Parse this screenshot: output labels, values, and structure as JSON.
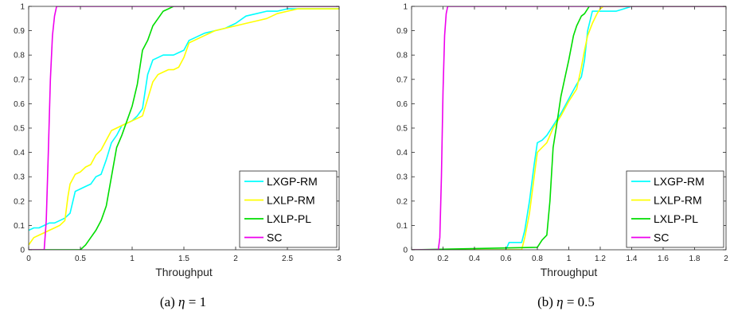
{
  "chart_data": [
    {
      "type": "line",
      "caption": "(a) η = 1",
      "caption_label": "(a)",
      "caption_var": "η",
      "caption_rhs": "= 1",
      "xlabel": "Throughput",
      "ylabel": "",
      "xlim": [
        0,
        3
      ],
      "ylim": [
        0,
        1
      ],
      "xticks": [
        "0",
        "0.5",
        "1",
        "1.5",
        "2",
        "2.5",
        "3"
      ],
      "yticks": [
        "0",
        "0.1",
        "0.2",
        "0.3",
        "0.4",
        "0.5",
        "0.6",
        "0.7",
        "0.8",
        "0.9",
        "1"
      ],
      "grid": false,
      "legend_position": "bottom-right",
      "series": [
        {
          "name": "LXGP-RM",
          "color": "#00FFFF",
          "x": [
            0,
            0.05,
            0.1,
            0.15,
            0.2,
            0.25,
            0.3,
            0.35,
            0.4,
            0.45,
            0.5,
            0.55,
            0.6,
            0.65,
            0.7,
            0.75,
            0.8,
            0.85,
            0.9,
            0.95,
            1.0,
            1.05,
            1.1,
            1.15,
            1.2,
            1.25,
            1.3,
            1.35,
            1.4,
            1.45,
            1.5,
            1.55,
            1.6,
            1.7,
            1.8,
            1.9,
            2.0,
            2.1,
            2.2,
            2.3,
            2.4,
            2.5,
            2.6,
            3.0
          ],
          "y": [
            0.08,
            0.09,
            0.09,
            0.1,
            0.11,
            0.11,
            0.12,
            0.13,
            0.15,
            0.24,
            0.25,
            0.26,
            0.27,
            0.3,
            0.31,
            0.37,
            0.44,
            0.47,
            0.51,
            0.52,
            0.53,
            0.55,
            0.58,
            0.72,
            0.78,
            0.79,
            0.8,
            0.8,
            0.8,
            0.81,
            0.82,
            0.86,
            0.87,
            0.89,
            0.9,
            0.91,
            0.93,
            0.96,
            0.97,
            0.98,
            0.98,
            0.99,
            0.99,
            0.99
          ]
        },
        {
          "name": "LXLP-RM",
          "color": "#FFFF00",
          "x": [
            0,
            0.05,
            0.1,
            0.15,
            0.2,
            0.25,
            0.3,
            0.35,
            0.38,
            0.4,
            0.45,
            0.5,
            0.55,
            0.6,
            0.65,
            0.7,
            0.75,
            0.8,
            0.85,
            0.9,
            0.95,
            1.0,
            1.05,
            1.1,
            1.15,
            1.2,
            1.25,
            1.3,
            1.35,
            1.4,
            1.45,
            1.5,
            1.55,
            1.6,
            1.7,
            1.8,
            1.9,
            2.0,
            2.1,
            2.2,
            2.3,
            2.4,
            2.5,
            2.6,
            3.0
          ],
          "y": [
            0.02,
            0.05,
            0.06,
            0.07,
            0.08,
            0.09,
            0.1,
            0.12,
            0.22,
            0.27,
            0.31,
            0.32,
            0.34,
            0.35,
            0.39,
            0.41,
            0.45,
            0.49,
            0.5,
            0.51,
            0.52,
            0.53,
            0.54,
            0.55,
            0.62,
            0.69,
            0.72,
            0.73,
            0.74,
            0.74,
            0.75,
            0.79,
            0.85,
            0.86,
            0.88,
            0.9,
            0.91,
            0.92,
            0.93,
            0.94,
            0.95,
            0.97,
            0.98,
            0.99,
            0.99
          ]
        },
        {
          "name": "LXLP-PL",
          "color": "#00DD00",
          "x": [
            0,
            0.5,
            0.55,
            0.6,
            0.65,
            0.7,
            0.75,
            0.8,
            0.85,
            0.9,
            0.95,
            1.0,
            1.05,
            1.1,
            1.15,
            1.2,
            1.25,
            1.3,
            1.35,
            1.4,
            1.5,
            3.0
          ],
          "y": [
            0,
            0,
            0.02,
            0.05,
            0.08,
            0.12,
            0.18,
            0.3,
            0.42,
            0.47,
            0.53,
            0.59,
            0.68,
            0.82,
            0.86,
            0.92,
            0.95,
            0.98,
            0.99,
            1.0,
            1.0,
            1.0
          ]
        },
        {
          "name": "SC",
          "color": "#EE00EE",
          "x": [
            0,
            0.15,
            0.17,
            0.19,
            0.21,
            0.23,
            0.25,
            0.27,
            0.3,
            3.0
          ],
          "y": [
            0,
            0,
            0.12,
            0.4,
            0.7,
            0.88,
            0.96,
            1.0,
            1.0,
            1.0
          ]
        }
      ]
    },
    {
      "type": "line",
      "caption": "(b) η = 0.5",
      "caption_label": "(b)",
      "caption_var": "η",
      "caption_rhs": "= 0.5",
      "xlabel": "Throughput",
      "ylabel": "",
      "xlim": [
        0,
        2
      ],
      "ylim": [
        0,
        1
      ],
      "xticks": [
        "0",
        "0.2",
        "0.4",
        "0.6",
        "0.8",
        "1",
        "1.2",
        "1.4",
        "1.6",
        "1.8",
        "2"
      ],
      "yticks": [
        "0",
        "0.1",
        "0.2",
        "0.3",
        "0.4",
        "0.5",
        "0.6",
        "0.7",
        "0.8",
        "0.9",
        "1"
      ],
      "grid": false,
      "legend_position": "bottom-right",
      "series": [
        {
          "name": "LXGP-RM",
          "color": "#00FFFF",
          "x": [
            0,
            0.6,
            0.62,
            0.7,
            0.72,
            0.75,
            0.78,
            0.8,
            0.83,
            0.86,
            0.9,
            0.95,
            1.0,
            1.05,
            1.08,
            1.1,
            1.12,
            1.15,
            1.2,
            1.25,
            1.3,
            1.35,
            1.4,
            2.0
          ],
          "y": [
            0,
            0,
            0.03,
            0.03,
            0.08,
            0.2,
            0.35,
            0.44,
            0.45,
            0.47,
            0.51,
            0.56,
            0.62,
            0.68,
            0.71,
            0.78,
            0.9,
            0.98,
            0.98,
            0.98,
            0.98,
            0.99,
            1.0,
            1.0
          ]
        },
        {
          "name": "LXLP-RM",
          "color": "#FFFF00",
          "x": [
            0,
            0.7,
            0.72,
            0.75,
            0.78,
            0.8,
            0.83,
            0.86,
            0.9,
            0.95,
            1.0,
            1.05,
            1.08,
            1.1,
            1.12,
            1.15,
            1.18,
            1.2,
            1.22,
            2.0
          ],
          "y": [
            0,
            0,
            0.05,
            0.15,
            0.3,
            0.4,
            0.42,
            0.44,
            0.5,
            0.55,
            0.61,
            0.66,
            0.75,
            0.82,
            0.88,
            0.93,
            0.97,
            0.99,
            1.0,
            1.0
          ]
        },
        {
          "name": "LXLP-PL",
          "color": "#00DD00",
          "x": [
            0,
            0.8,
            0.83,
            0.86,
            0.88,
            0.9,
            0.92,
            0.95,
            0.98,
            1.0,
            1.03,
            1.05,
            1.08,
            1.1,
            1.13,
            1.15,
            2.0
          ],
          "y": [
            0,
            0.01,
            0.04,
            0.06,
            0.2,
            0.42,
            0.5,
            0.63,
            0.72,
            0.78,
            0.88,
            0.92,
            0.96,
            0.97,
            1.0,
            1.0,
            1.0
          ]
        },
        {
          "name": "SC",
          "color": "#EE00EE",
          "x": [
            0,
            0.17,
            0.18,
            0.19,
            0.2,
            0.21,
            0.22,
            0.23,
            0.25,
            2.0
          ],
          "y": [
            0,
            0,
            0.05,
            0.3,
            0.65,
            0.88,
            0.97,
            1.0,
            1.0,
            1.0
          ]
        }
      ]
    }
  ]
}
